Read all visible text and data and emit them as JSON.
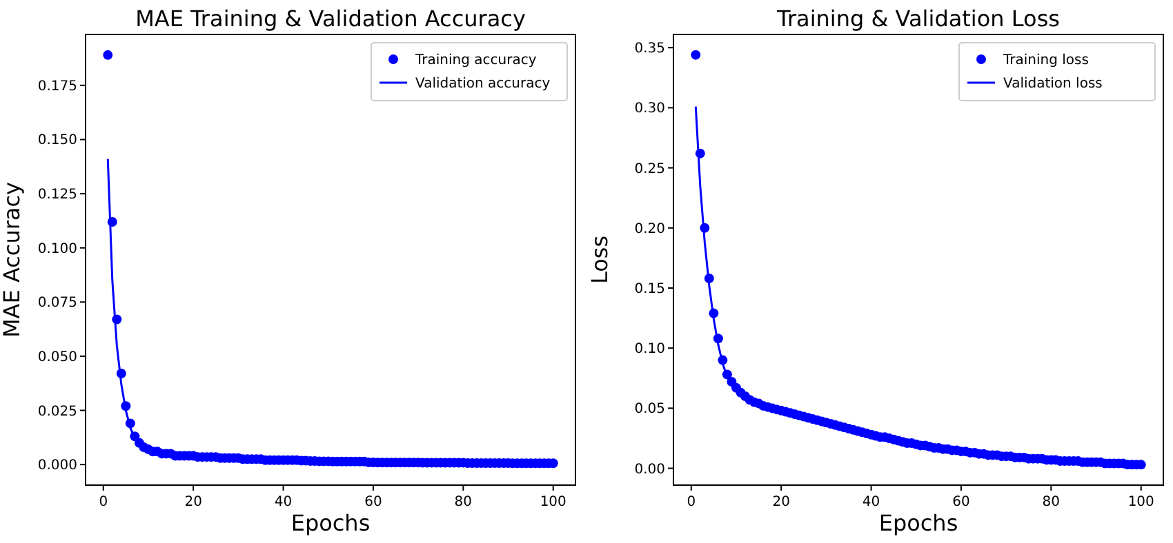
{
  "chart_data": [
    {
      "type": "line",
      "title": "MAE Training & Validation Accuracy",
      "xlabel": "Epochs",
      "ylabel": "MAE Accuracy",
      "xlim": [
        -3.95,
        104.95
      ],
      "ylim": [
        -0.0095,
        0.1985
      ],
      "xticks": [
        0,
        20,
        40,
        60,
        80,
        100
      ],
      "yticks": [
        {
          "value": 0,
          "label": "0.000"
        },
        {
          "value": 0.025,
          "label": "0.025"
        },
        {
          "value": 0.05,
          "label": "0.050"
        },
        {
          "value": 0.075,
          "label": "0.075"
        },
        {
          "value": 0.1,
          "label": "0.100"
        },
        {
          "value": 0.125,
          "label": "0.125"
        },
        {
          "value": 0.15,
          "label": "0.150"
        },
        {
          "value": 0.175,
          "label": "0.175"
        }
      ],
      "legend": "top right",
      "grid": false,
      "series": [
        {
          "name": "Training accuracy",
          "type": "scatter",
          "marker": "circle",
          "color": "#0000ff",
          "x": [
            1,
            2,
            3,
            4,
            5,
            6,
            7,
            8,
            9,
            10,
            11,
            12,
            13,
            14,
            15,
            16,
            17,
            18,
            19,
            20,
            21,
            22,
            23,
            24,
            25,
            26,
            27,
            28,
            29,
            30,
            31,
            32,
            33,
            34,
            35,
            36,
            37,
            38,
            39,
            40,
            41,
            42,
            43,
            44,
            45,
            46,
            47,
            48,
            49,
            50,
            51,
            52,
            53,
            54,
            55,
            56,
            57,
            58,
            59,
            60,
            61,
            62,
            63,
            64,
            65,
            66,
            67,
            68,
            69,
            70,
            71,
            72,
            73,
            74,
            75,
            76,
            77,
            78,
            79,
            80,
            81,
            82,
            83,
            84,
            85,
            86,
            87,
            88,
            89,
            90,
            91,
            92,
            93,
            94,
            95,
            96,
            97,
            98,
            99,
            100
          ],
          "values": [
            0.189,
            0.112,
            0.067,
            0.042,
            0.027,
            0.019,
            0.013,
            0.01,
            0.008,
            0.007,
            0.006,
            0.006,
            0.005,
            0.005,
            0.005,
            0.004,
            0.004,
            0.004,
            0.004,
            0.004,
            0.0035,
            0.0035,
            0.0035,
            0.0035,
            0.0035,
            0.003,
            0.003,
            0.003,
            0.003,
            0.003,
            0.0025,
            0.0025,
            0.0025,
            0.0025,
            0.0025,
            0.002,
            0.002,
            0.002,
            0.002,
            0.002,
            0.002,
            0.002,
            0.002,
            0.0018,
            0.0018,
            0.0016,
            0.0016,
            0.0015,
            0.0015,
            0.0015,
            0.0014,
            0.0014,
            0.0014,
            0.0014,
            0.0014,
            0.0014,
            0.0014,
            0.0014,
            0.001,
            0.001,
            0.0009,
            0.0009,
            0.0009,
            0.0009,
            0.0009,
            0.0009,
            0.0009,
            0.0009,
            0.0009,
            0.0009,
            0.0008,
            0.0008,
            0.0008,
            0.0008,
            0.0008,
            0.0008,
            0.0008,
            0.0008,
            0.0008,
            0.0008,
            0.0007,
            0.0007,
            0.0007,
            0.0007,
            0.0007,
            0.0007,
            0.0007,
            0.0007,
            0.0007,
            0.0007,
            0.0006,
            0.0006,
            0.0006,
            0.0006,
            0.0006,
            0.0006,
            0.0006,
            0.0006,
            0.0006,
            0.0006
          ]
        },
        {
          "name": "Validation accuracy",
          "line_style": "solid",
          "color": "#0000ff",
          "x": [
            1,
            2,
            3,
            4,
            5,
            6,
            7,
            8,
            9,
            10,
            15,
            20,
            30,
            40,
            50,
            60,
            80,
            100
          ],
          "values": [
            0.141,
            0.085,
            0.055,
            0.037,
            0.025,
            0.017,
            0.012,
            0.009,
            0.007,
            0.006,
            0.0045,
            0.0038,
            0.0028,
            0.002,
            0.0014,
            0.001,
            0.0007,
            0.0005
          ]
        }
      ]
    },
    {
      "type": "line",
      "title": "Training & Validation Loss",
      "xlabel": "Epochs",
      "ylabel": "Loss",
      "xlim": [
        -3.95,
        104.95
      ],
      "ylim": [
        -0.014,
        0.361
      ],
      "xticks": [
        0,
        20,
        40,
        60,
        80,
        100
      ],
      "yticks": [
        {
          "value": 0,
          "label": "0.00"
        },
        {
          "value": 0.05,
          "label": "0.05"
        },
        {
          "value": 0.1,
          "label": "0.10"
        },
        {
          "value": 0.15,
          "label": "0.15"
        },
        {
          "value": 0.2,
          "label": "0.20"
        },
        {
          "value": 0.25,
          "label": "0.25"
        },
        {
          "value": 0.3,
          "label": "0.30"
        },
        {
          "value": 0.35,
          "label": "0.35"
        }
      ],
      "legend": "top right",
      "grid": false,
      "series": [
        {
          "name": "Training loss",
          "type": "scatter",
          "marker": "circle",
          "color": "#0000ff",
          "x": [
            1,
            2,
            3,
            4,
            5,
            6,
            7,
            8,
            9,
            10,
            11,
            12,
            13,
            14,
            15,
            16,
            17,
            18,
            19,
            20,
            21,
            22,
            23,
            24,
            25,
            26,
            27,
            28,
            29,
            30,
            31,
            32,
            33,
            34,
            35,
            36,
            37,
            38,
            39,
            40,
            41,
            42,
            43,
            44,
            45,
            46,
            47,
            48,
            49,
            50,
            51,
            52,
            53,
            54,
            55,
            56,
            57,
            58,
            59,
            60,
            61,
            62,
            63,
            64,
            65,
            66,
            67,
            68,
            69,
            70,
            71,
            72,
            73,
            74,
            75,
            76,
            77,
            78,
            79,
            80,
            81,
            82,
            83,
            84,
            85,
            86,
            87,
            88,
            89,
            90,
            91,
            92,
            93,
            94,
            95,
            96,
            97,
            98,
            99,
            100
          ],
          "values": [
            0.344,
            0.262,
            0.2,
            0.158,
            0.129,
            0.108,
            0.09,
            0.078,
            0.072,
            0.067,
            0.063,
            0.06,
            0.057,
            0.055,
            0.054,
            0.052,
            0.051,
            0.05,
            0.049,
            0.048,
            0.047,
            0.046,
            0.045,
            0.044,
            0.043,
            0.042,
            0.041,
            0.04,
            0.039,
            0.038,
            0.037,
            0.036,
            0.035,
            0.034,
            0.033,
            0.032,
            0.031,
            0.03,
            0.029,
            0.028,
            0.027,
            0.026,
            0.026,
            0.025,
            0.024,
            0.023,
            0.022,
            0.021,
            0.021,
            0.02,
            0.019,
            0.019,
            0.018,
            0.017,
            0.017,
            0.016,
            0.016,
            0.015,
            0.015,
            0.014,
            0.014,
            0.013,
            0.013,
            0.012,
            0.012,
            0.011,
            0.011,
            0.011,
            0.01,
            0.01,
            0.01,
            0.009,
            0.009,
            0.009,
            0.008,
            0.008,
            0.008,
            0.008,
            0.007,
            0.007,
            0.007,
            0.006,
            0.006,
            0.006,
            0.006,
            0.006,
            0.005,
            0.005,
            0.005,
            0.005,
            0.005,
            0.004,
            0.004,
            0.004,
            0.004,
            0.004,
            0.003,
            0.003,
            0.003,
            0.003
          ]
        },
        {
          "name": "Validation loss",
          "line_style": "solid",
          "color": "#0000ff",
          "x": [
            1,
            2,
            3,
            4,
            5,
            6,
            7,
            8,
            9,
            10,
            15,
            20,
            30,
            40,
            50,
            60,
            70,
            80,
            90,
            100
          ],
          "values": [
            0.301,
            0.235,
            0.188,
            0.152,
            0.124,
            0.103,
            0.087,
            0.076,
            0.07,
            0.065,
            0.053,
            0.047,
            0.037,
            0.027,
            0.019,
            0.013,
            0.009,
            0.006,
            0.004,
            0.003
          ]
        }
      ]
    }
  ]
}
